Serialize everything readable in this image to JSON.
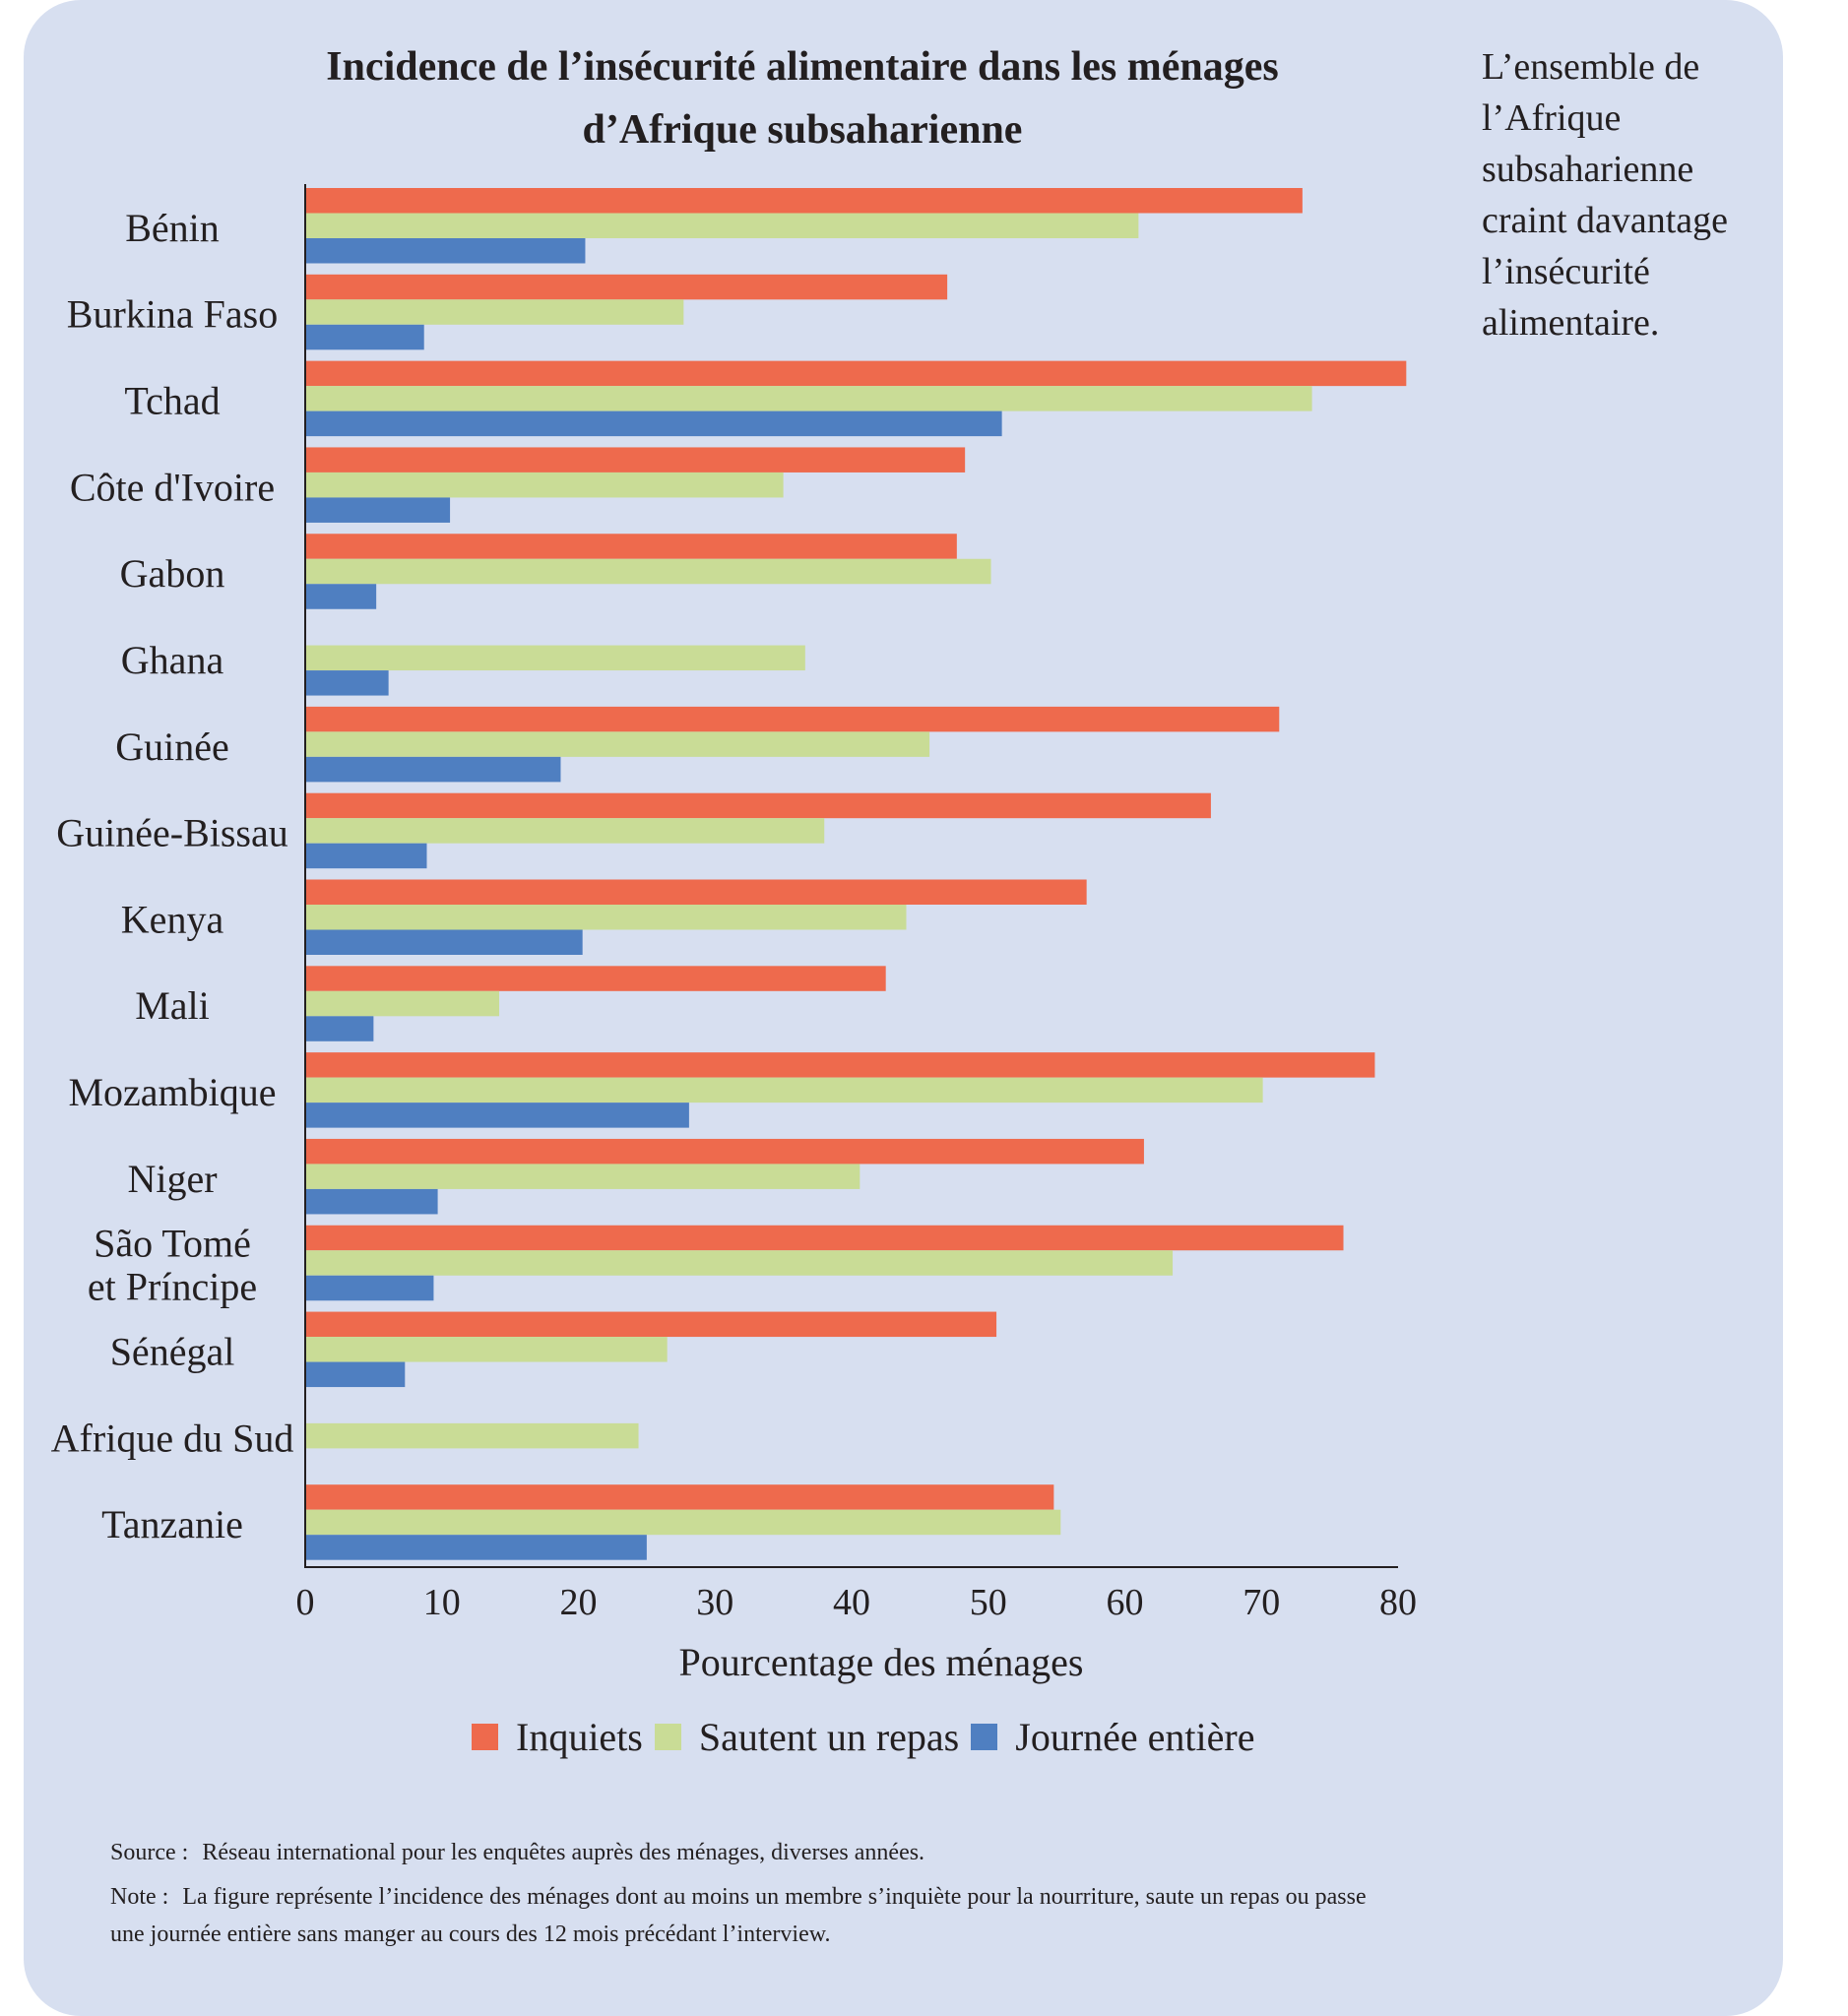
{
  "title_lines": [
    "Incidence de l’insécurité alimentaire dans les ménages",
    "d’Afrique subsaharienne"
  ],
  "side_note": "L’ensemble de l’Afrique subsaharienne craint davantage l’insécurité alimentaire.",
  "colors": {
    "inquiets": "#ee6a4d",
    "sautent": "#c9dc96",
    "journee": "#4f7fc1",
    "axis": "#231f20",
    "panel": "#d7dff0"
  },
  "footer": {
    "source_label": "Source :",
    "source_text": "Réseau international pour les enquêtes auprès des ménages, diverses années.",
    "note_label": "Note :",
    "note_text": "La figure représente l’incidence des ménages dont au moins un membre s’inquiète pour la nourriture, saute un repas ou passe une journée entière sans manger au cours des 12 mois précédant l’interview."
  },
  "chart_data": {
    "type": "bar",
    "orientation": "horizontal",
    "title": "Incidence de l’insécurité alimentaire dans les ménages d’Afrique subsaharienne",
    "xlabel": "Pourcentage des ménages",
    "ylabel": "",
    "xlim": [
      0,
      80
    ],
    "xticks": [
      0,
      10,
      20,
      30,
      40,
      50,
      60,
      70,
      80
    ],
    "grid": false,
    "legend_position": "bottom",
    "categories": [
      [
        "Bénin"
      ],
      [
        "Burkina Faso"
      ],
      [
        "Tchad"
      ],
      [
        "Côte d'Ivoire"
      ],
      [
        "Gabon"
      ],
      [
        "Ghana"
      ],
      [
        "Guinée"
      ],
      [
        "Guinée-Bissau"
      ],
      [
        "Kenya"
      ],
      [
        "Mali"
      ],
      [
        "Mozambique"
      ],
      [
        "Niger"
      ],
      [
        "São Tomé",
        "et Príncipe"
      ],
      [
        "Sénégal"
      ],
      [
        "Afrique du Sud"
      ],
      [
        "Tanzanie"
      ]
    ],
    "series": [
      {
        "name": "Inquiets",
        "color": "#ee6a4d",
        "values": [
          73,
          47,
          80.6,
          48.3,
          47.7,
          null,
          71.3,
          66.3,
          57.2,
          42.5,
          78.3,
          61.4,
          76,
          50.6,
          null,
          54.8
        ]
      },
      {
        "name": "Sautent un repas",
        "color": "#c9dc96",
        "values": [
          61,
          27.7,
          73.7,
          35,
          50.2,
          36.6,
          45.7,
          38,
          44,
          14.2,
          70.1,
          40.6,
          63.5,
          26.5,
          24.4,
          55.3
        ]
      },
      {
        "name": "Journée entière",
        "color": "#4f7fc1",
        "values": [
          20.5,
          8.7,
          51,
          10.6,
          5.2,
          6.1,
          18.7,
          8.9,
          20.3,
          5,
          28.1,
          9.7,
          9.4,
          7.3,
          null,
          25
        ]
      }
    ]
  }
}
